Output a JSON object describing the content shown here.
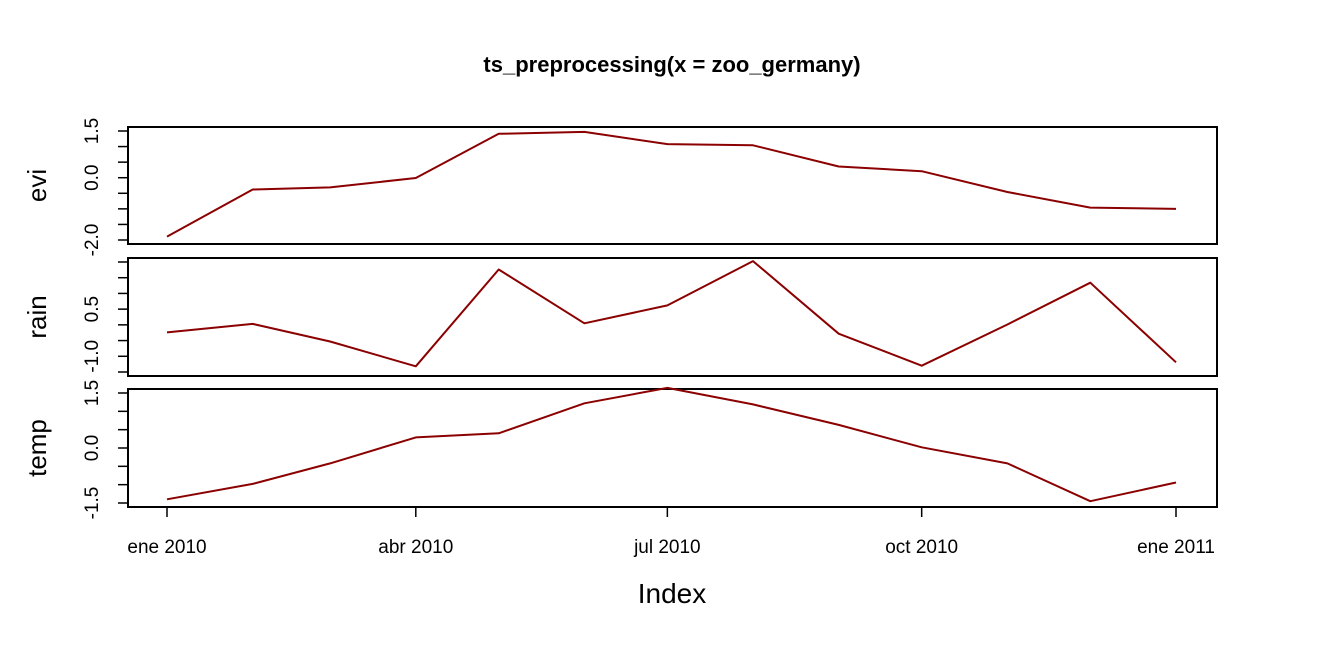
{
  "chart_data": {
    "type": "line",
    "title": "ts_preprocessing(x = zoo_germany)",
    "xlabel": "Index",
    "x": [
      "2010-01-01",
      "2010-02-01",
      "2010-03-01",
      "2010-04-01",
      "2010-05-01",
      "2010-06-01",
      "2010-07-01",
      "2010-08-01",
      "2010-09-01",
      "2010-10-01",
      "2010-11-01",
      "2010-12-01",
      "2011-01-01"
    ],
    "x_ticks": [
      {
        "date": "2010-01-01",
        "label": "ene 2010"
      },
      {
        "date": "2010-04-01",
        "label": "abr 2010"
      },
      {
        "date": "2010-07-01",
        "label": "jul 2010"
      },
      {
        "date": "2010-10-01",
        "label": "oct 2010"
      },
      {
        "date": "2011-01-01",
        "label": "ene 2011"
      }
    ],
    "line_color": "#8b0000",
    "grid": false,
    "series": [
      {
        "name": "evi",
        "values": [
          -1.89,
          -0.38,
          -0.31,
          -0.01,
          1.41,
          1.47,
          1.08,
          1.04,
          0.36,
          0.21,
          -0.46,
          -0.96,
          -1.0
        ],
        "ylim": [
          -2.0,
          1.5
        ],
        "yticks": [
          -2.0,
          -1.5,
          -1.0,
          -0.5,
          0.0,
          0.5,
          1.0,
          1.5
        ],
        "ytick_labels": [
          {
            "value": -2.0,
            "label": "-2.0"
          },
          {
            "value": 0.0,
            "label": "0.0"
          },
          {
            "value": 1.5,
            "label": "1.5"
          }
        ]
      },
      {
        "name": "rain",
        "values": [
          -0.24,
          0.03,
          -0.53,
          -1.32,
          1.76,
          0.05,
          0.62,
          2.03,
          -0.28,
          -1.3,
          0.01,
          1.34,
          -1.19
        ],
        "ylim": [
          -1.5,
          2.0
        ],
        "yticks": [
          -1.5,
          -1.0,
          -0.5,
          0.0,
          0.5,
          1.0,
          1.5,
          2.0
        ],
        "ytick_labels": [
          {
            "value": -1.0,
            "label": "-1.0"
          },
          {
            "value": 0.5,
            "label": "0.5"
          }
        ]
      },
      {
        "name": "temp",
        "values": [
          -1.4,
          -0.98,
          -0.42,
          0.29,
          0.4,
          1.22,
          1.64,
          1.19,
          0.63,
          0.02,
          -0.42,
          -1.45,
          -0.94
        ],
        "ylim": [
          -1.5,
          1.5
        ],
        "yticks": [
          -1.5,
          -1.0,
          -0.5,
          0.0,
          0.5,
          1.0,
          1.5
        ],
        "ytick_labels": [
          {
            "value": -1.5,
            "label": "-1.5"
          },
          {
            "value": 0.0,
            "label": "0.0"
          },
          {
            "value": 1.5,
            "label": "1.5"
          }
        ]
      }
    ]
  }
}
